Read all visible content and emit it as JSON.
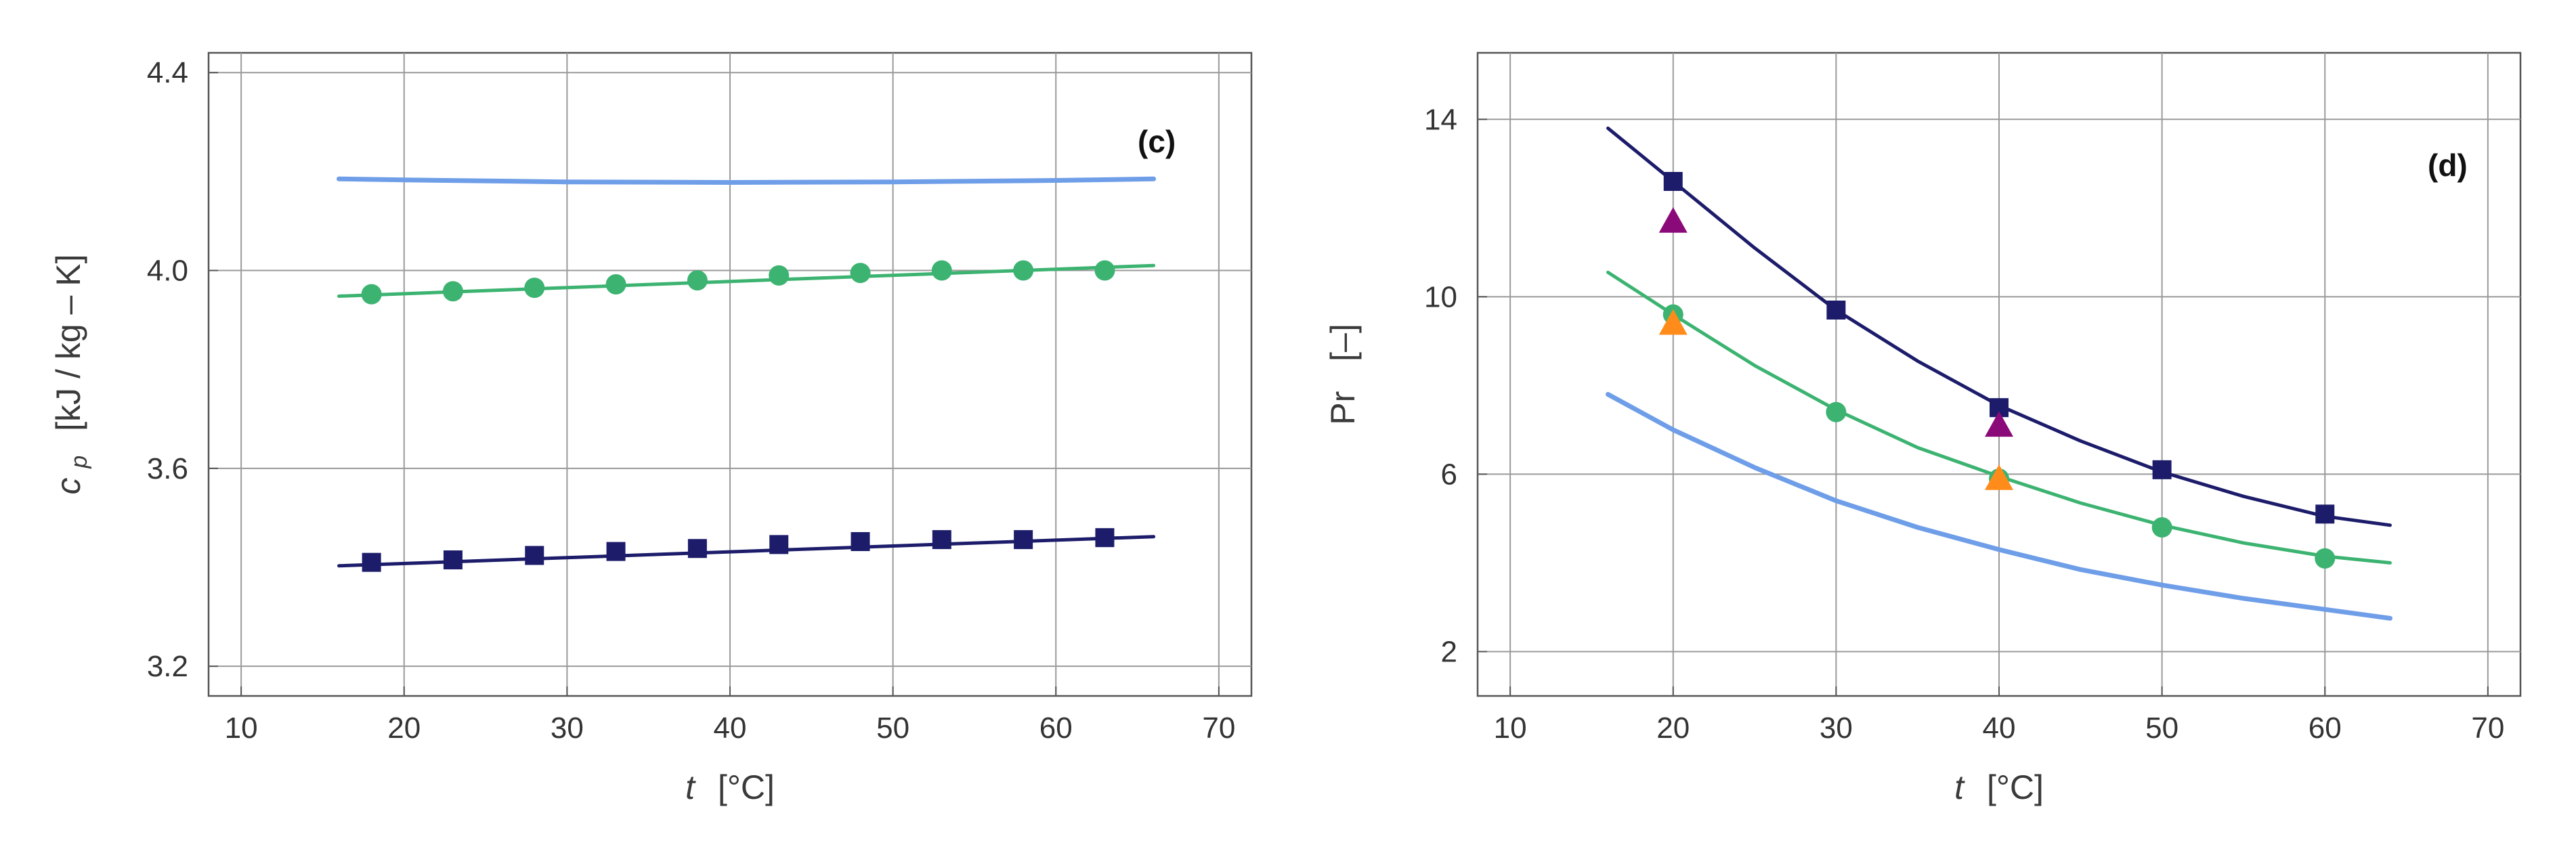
{
  "chart_data": [
    {
      "type": "line",
      "panel_label": "(c)",
      "xlabel_symbol": "t",
      "xlabel_unit": "[°C]",
      "ylabel_symbol": "c",
      "ylabel_subscript": "p",
      "ylabel_unit": "[kJ / kg – K]",
      "xlim": [
        8,
        72
      ],
      "ylim": [
        3.14,
        4.44
      ],
      "xticks": [
        10,
        20,
        30,
        40,
        50,
        60,
        70
      ],
      "yticks": [
        3.2,
        3.6,
        4.0,
        4.4
      ],
      "ytick_labels": [
        "3.2",
        "3.6",
        "4.0",
        "4.4"
      ],
      "grid": true,
      "series": [
        {
          "name": "light-blue fit",
          "color": "#6f9ee8",
          "kind": "line",
          "x": [
            16,
            20,
            30,
            40,
            50,
            60,
            66
          ],
          "y": [
            4.185,
            4.183,
            4.179,
            4.178,
            4.179,
            4.182,
            4.185
          ]
        },
        {
          "name": "green fit",
          "color": "#3cb371",
          "kind": "line",
          "x": [
            16,
            66
          ],
          "y": [
            3.948,
            4.01
          ]
        },
        {
          "name": "green data",
          "color": "#3cb371",
          "kind": "marker",
          "marker": "circle",
          "x": [
            18,
            23,
            28,
            33,
            38,
            43,
            48,
            53,
            58,
            63
          ],
          "y": [
            3.952,
            3.958,
            3.965,
            3.972,
            3.98,
            3.99,
            3.995,
            4.0,
            4.0,
            4.0
          ]
        },
        {
          "name": "navy fit",
          "color": "#1c1c6b",
          "kind": "line",
          "x": [
            16,
            66
          ],
          "y": [
            3.403,
            3.462
          ]
        },
        {
          "name": "navy data",
          "color": "#1c1c6b",
          "kind": "marker",
          "marker": "square",
          "x": [
            18,
            23,
            28,
            33,
            38,
            43,
            48,
            53,
            58,
            63
          ],
          "y": [
            3.41,
            3.415,
            3.424,
            3.432,
            3.438,
            3.446,
            3.452,
            3.456,
            3.456,
            3.46
          ]
        }
      ]
    },
    {
      "type": "line",
      "panel_label": "(d)",
      "xlabel_symbol": "t",
      "xlabel_unit": "[°C]",
      "ylabel_symbol": "Pr",
      "ylabel_unit": "[–]",
      "xlim": [
        8,
        72
      ],
      "ylim": [
        1.0,
        15.5
      ],
      "xticks": [
        10,
        20,
        30,
        40,
        50,
        60,
        70
      ],
      "yticks": [
        2,
        6,
        10,
        14
      ],
      "ytick_labels": [
        "2",
        "6",
        "10",
        "14"
      ],
      "grid": true,
      "series": [
        {
          "name": "light-blue fit",
          "color": "#6f9ee8",
          "kind": "line",
          "x": [
            16,
            20,
            25,
            30,
            35,
            40,
            45,
            50,
            55,
            60,
            64
          ],
          "y": [
            7.8,
            7.0,
            6.15,
            5.4,
            4.8,
            4.3,
            3.85,
            3.5,
            3.2,
            2.95,
            2.75
          ]
        },
        {
          "name": "green fit",
          "color": "#3cb371",
          "kind": "line",
          "x": [
            16,
            20,
            25,
            30,
            35,
            40,
            45,
            50,
            55,
            60,
            64
          ],
          "y": [
            10.55,
            9.6,
            8.45,
            7.45,
            6.6,
            5.95,
            5.35,
            4.85,
            4.45,
            4.15,
            4.0
          ]
        },
        {
          "name": "green data",
          "color": "#3cb371",
          "kind": "marker",
          "marker": "circle",
          "x": [
            20,
            30,
            40,
            50,
            60
          ],
          "y": [
            9.6,
            7.4,
            5.9,
            4.8,
            4.1
          ]
        },
        {
          "name": "navy fit",
          "color": "#1c1c6b",
          "kind": "line",
          "x": [
            16,
            20,
            25,
            30,
            35,
            40,
            45,
            50,
            55,
            60,
            64
          ],
          "y": [
            13.8,
            12.6,
            11.1,
            9.7,
            8.55,
            7.55,
            6.75,
            6.05,
            5.5,
            5.05,
            4.85
          ]
        },
        {
          "name": "navy data",
          "color": "#1c1c6b",
          "kind": "marker",
          "marker": "square",
          "x": [
            20,
            30,
            40,
            50,
            60
          ],
          "y": [
            12.6,
            9.7,
            7.5,
            6.1,
            5.1
          ]
        },
        {
          "name": "purple data",
          "color": "#8b0a7a",
          "kind": "marker",
          "marker": "triangle",
          "x": [
            20,
            40
          ],
          "y": [
            11.7,
            7.1
          ]
        },
        {
          "name": "orange data",
          "color": "#ff8c1a",
          "kind": "marker",
          "marker": "triangle",
          "x": [
            20,
            40
          ],
          "y": [
            9.4,
            5.9
          ]
        }
      ]
    }
  ]
}
